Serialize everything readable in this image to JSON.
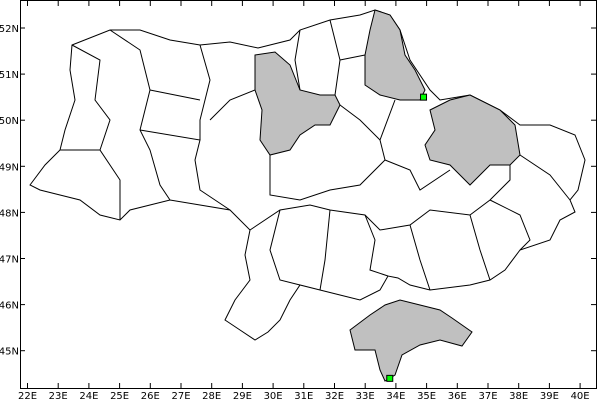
{
  "map": {
    "x_ticks": [
      "22E",
      "23E",
      "24E",
      "25E",
      "26E",
      "27E",
      "28E",
      "29E",
      "30E",
      "31E",
      "32E",
      "33E",
      "34E",
      "35E",
      "36E",
      "37E",
      "38E",
      "39E",
      "40E"
    ],
    "y_ticks": [
      "45N",
      "46N",
      "47N",
      "48N",
      "49N",
      "50N",
      "51N",
      "52N"
    ],
    "lon_range": [
      22,
      40
    ],
    "lat_range": [
      45,
      52
    ],
    "colors": {
      "highlight_fill": "#c0c0c0",
      "marker_fill": "#00ff00",
      "border": "#000000"
    },
    "markers": [
      {
        "lon": 34.9,
        "lat": 50.5
      },
      {
        "lon": 33.8,
        "lat": 44.4
      }
    ]
  }
}
